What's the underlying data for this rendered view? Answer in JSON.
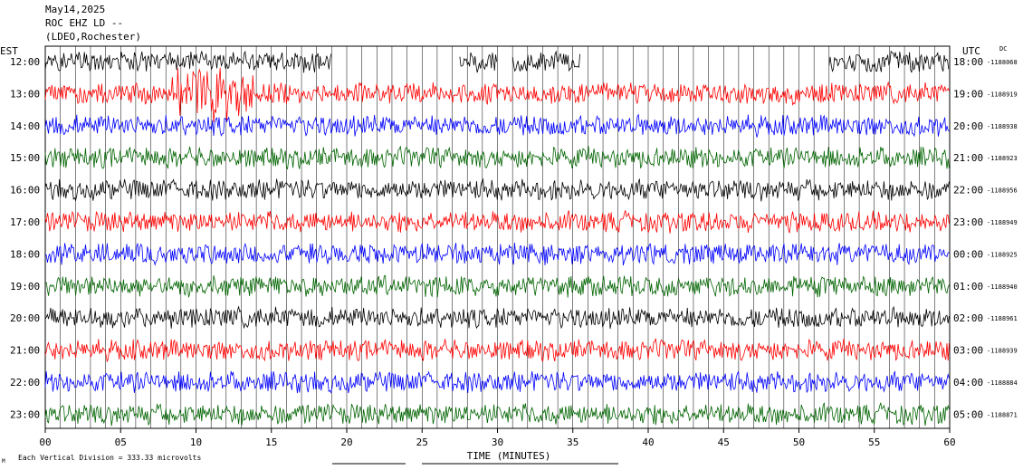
{
  "header": {
    "date": "May14,2025",
    "station": "ROC EHZ LD --",
    "network": "(LDEO,Rochester)"
  },
  "left_tz": "EST",
  "right_tz": "UTC",
  "dc_label": "DC",
  "footer": {
    "scale_note": "Each Vertical Division =  333.33 microvolts",
    "corner_mark": "M"
  },
  "chart_data": {
    "type": "line",
    "xlabel": "TIME (MINUTES)",
    "xlim": [
      0,
      60
    ],
    "x_ticks": [
      "00",
      "05",
      "10",
      "15",
      "20",
      "25",
      "30",
      "35",
      "40",
      "45",
      "50",
      "55",
      "60"
    ],
    "trace_colors": [
      "#000000",
      "#ff0000",
      "#0000ff",
      "#006400"
    ],
    "rows": [
      {
        "left": "12:00",
        "right": "18:00",
        "dc": "-1188068"
      },
      {
        "left": "13:00",
        "right": "19:00",
        "dc": "-1188919"
      },
      {
        "left": "14:00",
        "right": "20:00",
        "dc": "-1188938"
      },
      {
        "left": "15:00",
        "right": "21:00",
        "dc": "-1188923"
      },
      {
        "left": "16:00",
        "right": "22:00",
        "dc": "-1188956"
      },
      {
        "left": "17:00",
        "right": "23:00",
        "dc": "-1188949"
      },
      {
        "left": "18:00",
        "right": "00:00",
        "dc": "-1188925"
      },
      {
        "left": "19:00",
        "right": "01:00",
        "dc": "-1188940"
      },
      {
        "left": "20:00",
        "right": "02:00",
        "dc": "-1188961"
      },
      {
        "left": "21:00",
        "right": "03:00",
        "dc": "-1188939"
      },
      {
        "left": "22:00",
        "right": "04:00",
        "dc": "-1188884"
      },
      {
        "left": "23:00",
        "right": "05:00",
        "dc": "-1188871"
      }
    ],
    "first_row_data_minutes": [
      [
        0,
        19
      ],
      [
        27.5,
        30
      ],
      [
        31,
        35.5
      ],
      [
        52,
        60
      ]
    ]
  }
}
